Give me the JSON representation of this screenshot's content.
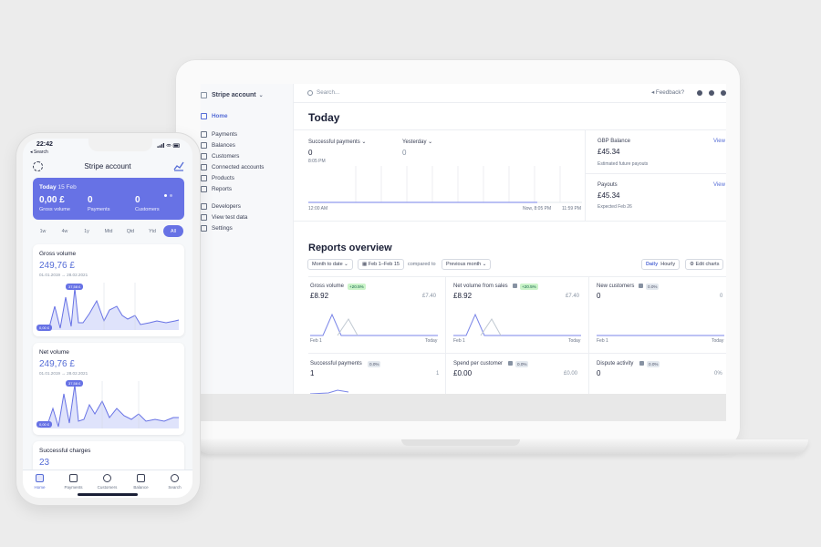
{
  "laptop": {
    "sidebar": {
      "account": "Stripe account",
      "items": [
        {
          "label": "Home",
          "icon": "home-icon",
          "active": true
        },
        {
          "label": "Payments",
          "icon": "payments-icon"
        },
        {
          "label": "Balances",
          "icon": "balances-icon"
        },
        {
          "label": "Customers",
          "icon": "customers-icon"
        },
        {
          "label": "Connected accounts",
          "icon": "connect-icon"
        },
        {
          "label": "Products",
          "icon": "products-icon"
        },
        {
          "label": "Reports",
          "icon": "reports-icon"
        },
        {
          "label": "Developers",
          "icon": "developers-icon"
        },
        {
          "label": "View test data",
          "icon": "toggle-icon"
        },
        {
          "label": "Settings",
          "icon": "gear-icon"
        }
      ]
    },
    "topbar": {
      "search_placeholder": "Search...",
      "feedback": "Feedback?"
    },
    "today": {
      "title": "Today",
      "successful_payments_label": "Successful payments",
      "successful_payments_value": "0",
      "successful_payments_time": "8:05 PM",
      "yesterday_label": "Yesterday",
      "yesterday_value": "0",
      "axis_start": "12:00 AM",
      "axis_now": "Now, 8:05 PM",
      "axis_end": "11:59 PM",
      "balance_label": "GBP Balance",
      "balance_link": "View",
      "balance_value": "£45.34",
      "balance_sub": "Estimated future payouts",
      "payouts_label": "Payouts",
      "payouts_link": "View",
      "payouts_value": "£45.34",
      "payouts_sub": "Expected Feb 26"
    },
    "reports": {
      "title": "Reports overview",
      "filter_period": "Month to date",
      "filter_dates": "Feb 1–Feb 15",
      "compared_to": "compared to",
      "filter_compare": "Previous month",
      "toggle_daily": "Daily",
      "toggle_hourly": "Hourly",
      "edit_charts": "Edit charts",
      "tiles": [
        {
          "label": "Gross volume",
          "badge": "+20.5%",
          "value": "£8.92",
          "prev": "£7.40",
          "start": "Feb 1",
          "end": "Today"
        },
        {
          "label": "Net volume from sales",
          "badge": "+20.5%",
          "value": "£8.92",
          "prev": "£7.40",
          "start": "Feb 1",
          "end": "Today"
        },
        {
          "label": "New customers",
          "badge": "0.0%",
          "value": "0",
          "prev": "0",
          "start": "Feb 1",
          "end": "Today"
        },
        {
          "label": "Successful payments",
          "badge": "0.0%",
          "value": "1",
          "prev": "1"
        },
        {
          "label": "Spend per customer",
          "badge": "0.0%",
          "value": "£0.00",
          "prev": "£0.00"
        },
        {
          "label": "Dispute activity",
          "badge": "0.0%",
          "value": "0",
          "prev": "0%"
        }
      ]
    }
  },
  "phone": {
    "status": {
      "time": "22:42",
      "back": "◂ Search"
    },
    "title": "Stripe account",
    "today_card": {
      "title": "Today",
      "date": "15 Feb",
      "gross_value": "0,00 £",
      "gross_label": "Gross volume",
      "payments_value": "0",
      "payments_label": "Payments",
      "customers_value": "0",
      "customers_label": "Customers"
    },
    "ranges": [
      "1w",
      "4w",
      "1y",
      "Mtd",
      "Qtd",
      "Ytd",
      "All"
    ],
    "selected_range": "All",
    "cards": [
      {
        "title": "Gross volume",
        "value": "249,76 £",
        "dates": "01.01.2019 → 28.02.2021",
        "peak_tag": "37,58 £",
        "base_tag": "0,00 £"
      },
      {
        "title": "Net volume",
        "value": "249,76 £",
        "dates": "01.01.2019 → 28.02.2021",
        "peak_tag": "37,58 £",
        "base_tag": "0,00 £"
      },
      {
        "title": "Successful charges",
        "value": "23"
      }
    ],
    "tabs": [
      {
        "label": "Home",
        "icon": "home-icon",
        "active": true
      },
      {
        "label": "Payments",
        "icon": "payments-icon"
      },
      {
        "label": "Customers",
        "icon": "customers-icon"
      },
      {
        "label": "Balance",
        "icon": "balance-icon"
      },
      {
        "label": "Search",
        "icon": "search-icon"
      }
    ]
  },
  "colors": {
    "accent": "#6772e5",
    "link": "#556cd6",
    "text": "#1a1f36",
    "muted": "#697386"
  }
}
